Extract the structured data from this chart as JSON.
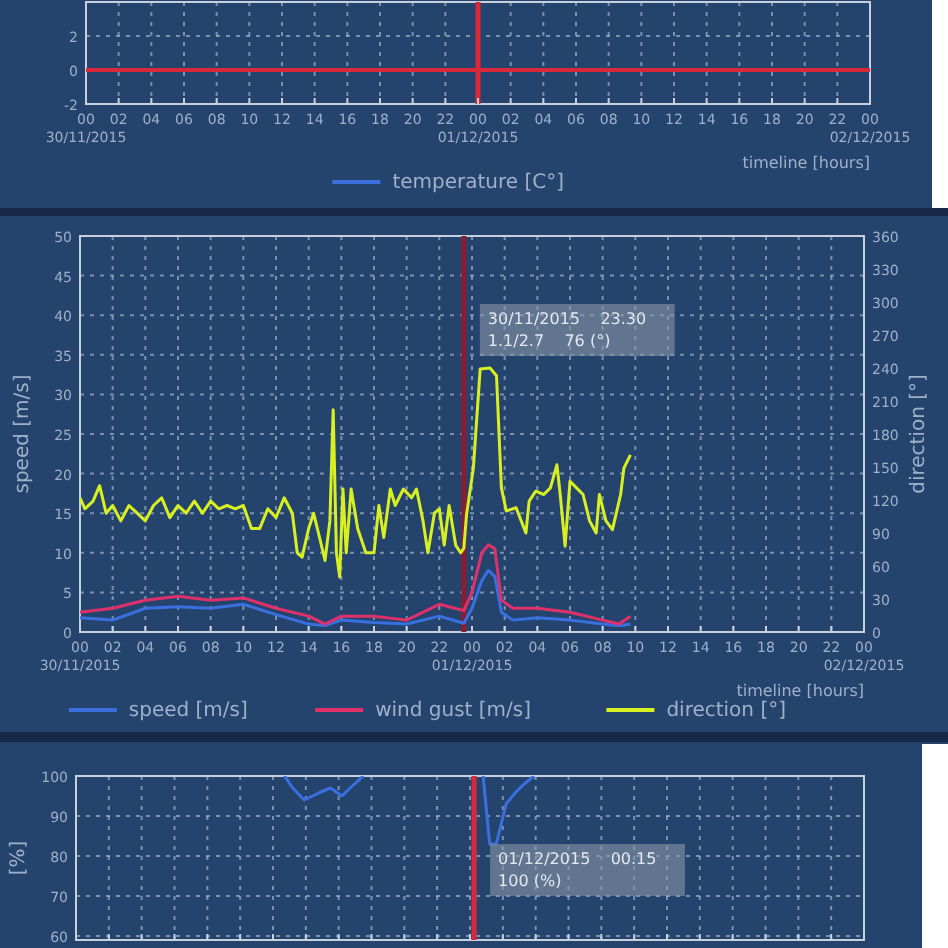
{
  "chart_data": [
    {
      "type": "line",
      "xlabel": "timeline [hours]",
      "categories": [
        "00\n30/11/2015",
        "02",
        "04",
        "06",
        "08",
        "10",
        "12",
        "14",
        "16",
        "18",
        "20",
        "22",
        "00\n01/12/2015",
        "02",
        "04",
        "06",
        "08",
        "10",
        "12",
        "14",
        "16",
        "18",
        "20",
        "22",
        "00\n02/12/2015"
      ],
      "ylim": [
        -2,
        4
      ],
      "yticks": [
        -2,
        0,
        2
      ],
      "grid": true,
      "legend": "bottom",
      "series": [
        {
          "name": "temperature [C°]",
          "color": "#3a6fe0",
          "values": [
            null,
            null,
            null,
            null,
            null,
            null,
            null,
            null,
            null,
            null,
            null,
            null,
            null,
            null,
            null,
            null,
            null,
            null,
            null,
            null,
            null,
            null,
            null,
            null,
            null
          ]
        }
      ],
      "ref_lines": [
        {
          "axis": "y",
          "value": 0,
          "color": "#d8283a"
        },
        {
          "axis": "x",
          "value": "00\n01/12/2015",
          "color": "#d8283a"
        }
      ]
    },
    {
      "type": "line",
      "xlabel": "timeline [hours]",
      "ylabel": "speed  [m/s]",
      "y2label": "direction  [°]",
      "xlim": [
        "2015-11-30T00:00",
        "2015-12-02T00:00"
      ],
      "xticks": [
        {
          "value": "2015-11-30T00:00",
          "label": "00\n30/11/2015"
        },
        {
          "value": "2015-11-30T02:00",
          "label": "02"
        },
        {
          "value": "2015-11-30T04:00",
          "label": "04"
        },
        {
          "value": "2015-11-30T06:00",
          "label": "06"
        },
        {
          "value": "2015-11-30T08:00",
          "label": "08"
        },
        {
          "value": "2015-11-30T10:00",
          "label": "10"
        },
        {
          "value": "2015-11-30T12:00",
          "label": "12"
        },
        {
          "value": "2015-11-30T14:00",
          "label": "14"
        },
        {
          "value": "2015-11-30T16:00",
          "label": "16"
        },
        {
          "value": "2015-11-30T18:00",
          "label": "18"
        },
        {
          "value": "2015-11-30T20:00",
          "label": "20"
        },
        {
          "value": "2015-11-30T22:00",
          "label": "22"
        },
        {
          "value": "2015-12-01T00:00",
          "label": "00\n01/12/2015"
        },
        {
          "value": "2015-12-01T02:00",
          "label": "02"
        },
        {
          "value": "2015-12-01T04:00",
          "label": "04"
        },
        {
          "value": "2015-12-01T06:00",
          "label": "06"
        },
        {
          "value": "2015-12-01T08:00",
          "label": "08"
        },
        {
          "value": "2015-12-01T10:00",
          "label": "10"
        },
        {
          "value": "2015-12-01T12:00",
          "label": "12"
        },
        {
          "value": "2015-12-01T14:00",
          "label": "14"
        },
        {
          "value": "2015-12-01T16:00",
          "label": "16"
        },
        {
          "value": "2015-12-01T18:00",
          "label": "18"
        },
        {
          "value": "2015-12-01T20:00",
          "label": "20"
        },
        {
          "value": "2015-12-01T22:00",
          "label": "22"
        },
        {
          "value": "2015-12-02T00:00",
          "label": "00\n02/12/2015"
        }
      ],
      "ylim": [
        0,
        50
      ],
      "yticks": [
        0,
        5,
        10,
        15,
        20,
        25,
        30,
        35,
        40,
        45,
        50
      ],
      "y2lim": [
        0,
        360
      ],
      "y2ticks": [
        0,
        30,
        60,
        90,
        120,
        150,
        180,
        210,
        240,
        270,
        300,
        330,
        360
      ],
      "grid": true,
      "legend": "bottom",
      "series": [
        {
          "name": "speed  [m/s]",
          "color": "#3a6fe0",
          "x": [
            "2015-11-30T00:00",
            "2015-11-30T02:00",
            "2015-11-30T04:00",
            "2015-11-30T06:00",
            "2015-11-30T08:00",
            "2015-11-30T10:00",
            "2015-11-30T12:00",
            "2015-11-30T14:00",
            "2015-11-30T15:00",
            "2015-11-30T16:00",
            "2015-11-30T18:00",
            "2015-11-30T20:00",
            "2015-11-30T22:00",
            "2015-11-30T23:30",
            "2015-12-01T00:00",
            "2015-12-01T00:36",
            "2015-12-01T01:00",
            "2015-12-01T01:24",
            "2015-12-01T01:48",
            "2015-12-01T02:30",
            "2015-12-01T04:00",
            "2015-12-01T06:00",
            "2015-12-01T08:00",
            "2015-12-01T09:00",
            "2015-12-01T09:42"
          ],
          "values": [
            1.8,
            1.5,
            3,
            3.2,
            3,
            3.5,
            2.2,
            1,
            0.8,
            1.5,
            1.2,
            1,
            2,
            1.1,
            3,
            6.5,
            7.8,
            7,
            2.5,
            1.5,
            1.8,
            1.5,
            1,
            0.8,
            1
          ]
        },
        {
          "name": "wind gust  [m/s]",
          "color": "#e0306a",
          "x": [
            "2015-11-30T00:00",
            "2015-11-30T02:00",
            "2015-11-30T04:00",
            "2015-11-30T06:00",
            "2015-11-30T08:00",
            "2015-11-30T10:00",
            "2015-11-30T12:00",
            "2015-11-30T14:00",
            "2015-11-30T15:00",
            "2015-11-30T16:00",
            "2015-11-30T18:00",
            "2015-11-30T20:00",
            "2015-11-30T22:00",
            "2015-11-30T23:30",
            "2015-12-01T00:00",
            "2015-12-01T00:36",
            "2015-12-01T01:00",
            "2015-12-01T01:24",
            "2015-12-01T01:48",
            "2015-12-01T02:30",
            "2015-12-01T04:00",
            "2015-12-01T06:00",
            "2015-12-01T08:00",
            "2015-12-01T09:00",
            "2015-12-01T09:42"
          ],
          "values": [
            2.5,
            3,
            4,
            4.5,
            4,
            4.3,
            3,
            2,
            1,
            2,
            2,
            1.5,
            3.5,
            2.7,
            5,
            10,
            11,
            10.5,
            4,
            3,
            3,
            2.5,
            1.5,
            1,
            2
          ]
        },
        {
          "name": "direction  [°]",
          "color": "#d8f020",
          "axis": "y2",
          "x": [
            "2015-11-30T00:00",
            "2015-11-30T00:18",
            "2015-11-30T00:48",
            "2015-11-30T01:12",
            "2015-11-30T01:36",
            "2015-11-30T02:00",
            "2015-11-30T02:30",
            "2015-11-30T03:00",
            "2015-11-30T03:30",
            "2015-11-30T04:00",
            "2015-11-30T04:30",
            "2015-11-30T05:00",
            "2015-11-30T05:30",
            "2015-11-30T06:00",
            "2015-11-30T06:30",
            "2015-11-30T07:00",
            "2015-11-30T07:30",
            "2015-11-30T08:00",
            "2015-11-30T08:30",
            "2015-11-30T09:00",
            "2015-11-30T09:30",
            "2015-11-30T10:00",
            "2015-11-30T10:30",
            "2015-11-30T11:00",
            "2015-11-30T11:30",
            "2015-11-30T12:00",
            "2015-11-30T12:30",
            "2015-11-30T13:00",
            "2015-11-30T13:18",
            "2015-11-30T13:36",
            "2015-11-30T14:00",
            "2015-11-30T14:18",
            "2015-11-30T14:36",
            "2015-11-30T15:00",
            "2015-11-30T15:18",
            "2015-11-30T15:30",
            "2015-11-30T15:42",
            "2015-11-30T15:54",
            "2015-11-30T16:06",
            "2015-11-30T16:18",
            "2015-11-30T16:36",
            "2015-11-30T17:00",
            "2015-11-30T17:30",
            "2015-11-30T18:00",
            "2015-11-30T18:18",
            "2015-11-30T18:36",
            "2015-11-30T19:00",
            "2015-11-30T19:18",
            "2015-11-30T19:48",
            "2015-11-30T20:18",
            "2015-11-30T20:36",
            "2015-11-30T21:00",
            "2015-11-30T21:18",
            "2015-11-30T21:42",
            "2015-11-30T22:00",
            "2015-11-30T22:18",
            "2015-11-30T22:36",
            "2015-11-30T23:00",
            "2015-11-30T23:18",
            "2015-11-30T23:30",
            "2015-11-30T23:40",
            "2015-12-01T00:05",
            "2015-12-01T00:30",
            "2015-12-01T01:06",
            "2015-12-01T01:30",
            "2015-12-01T01:48",
            "2015-12-01T02:06",
            "2015-12-01T02:42",
            "2015-12-01T03:18",
            "2015-12-01T03:30",
            "2015-12-01T03:54",
            "2015-12-01T04:24",
            "2015-12-01T04:48",
            "2015-12-01T05:12",
            "2015-12-01T05:24",
            "2015-12-01T05:42",
            "2015-12-01T06:00",
            "2015-12-01T06:24",
            "2015-12-01T06:48",
            "2015-12-01T07:12",
            "2015-12-01T07:36",
            "2015-12-01T07:48",
            "2015-12-01T08:12",
            "2015-12-01T08:36",
            "2015-12-01T09:06",
            "2015-12-01T09:18",
            "2015-12-01T09:42"
          ],
          "values": [
            122,
            112,
            119,
            133,
            108,
            115,
            101,
            115,
            108,
            101,
            115,
            122,
            104,
            115,
            108,
            119,
            108,
            119,
            112,
            115,
            112,
            115,
            94,
            94,
            112,
            104,
            122,
            108,
            72,
            68,
            94,
            108,
            90,
            65,
            101,
            202,
            72,
            50,
            130,
            72,
            130,
            94,
            72,
            72,
            115,
            86,
            130,
            115,
            130,
            122,
            130,
            101,
            72,
            108,
            112,
            79,
            115,
            79,
            72,
            76,
            107,
            149,
            239,
            240,
            233,
            131,
            110,
            113,
            90,
            119,
            128,
            125,
            131,
            152,
            125,
            78,
            137,
            131,
            125,
            101,
            90,
            125,
            101,
            93,
            125,
            149,
            161
          ]
        }
      ],
      "ref_lines": [
        {
          "axis": "x",
          "value": "2015-11-30T23:30",
          "color": "#8a1c34"
        }
      ],
      "annotations": [
        "30/11/2015    23.30",
        "1.1/2.7    76 (°)"
      ]
    },
    {
      "type": "line",
      "ylabel": "[%]",
      "xlim": [
        "2015-11-30T00:00",
        "2015-12-02T00:00"
      ],
      "ylim": [
        59,
        100
      ],
      "yticks": [
        60,
        70,
        80,
        90,
        100
      ],
      "grid": true,
      "tick_labels": "y",
      "xticks": [
        {
          "value": "2015-11-30T00:00",
          "label": null
        },
        {
          "value": "2015-11-30T02:00",
          "label": null
        },
        {
          "value": "2015-11-30T04:00",
          "label": null
        },
        {
          "value": "2015-11-30T06:00",
          "label": null
        },
        {
          "value": "2015-11-30T08:00",
          "label": null
        },
        {
          "value": "2015-11-30T10:00",
          "label": null
        },
        {
          "value": "2015-11-30T12:00",
          "label": null
        },
        {
          "value": "2015-11-30T14:00",
          "label": null
        },
        {
          "value": "2015-11-30T16:00",
          "label": null
        },
        {
          "value": "2015-11-30T18:00",
          "label": null
        },
        {
          "value": "2015-11-30T20:00",
          "label": null
        },
        {
          "value": "2015-11-30T22:00",
          "label": null
        },
        {
          "value": "2015-12-01T00:00",
          "label": null
        },
        {
          "value": "2015-12-01T02:00",
          "label": null
        },
        {
          "value": "2015-12-01T04:00",
          "label": null
        },
        {
          "value": "2015-12-01T06:00",
          "label": null
        },
        {
          "value": "2015-12-01T08:00",
          "label": null
        },
        {
          "value": "2015-12-01T10:00",
          "label": null
        },
        {
          "value": "2015-12-01T12:00",
          "label": null
        },
        {
          "value": "2015-12-01T14:00",
          "label": null
        },
        {
          "value": "2015-12-01T16:00",
          "label": null
        },
        {
          "value": "2015-12-01T18:00",
          "label": null
        },
        {
          "value": "2015-12-01T20:00",
          "label": null
        },
        {
          "value": "2015-12-01T22:00",
          "label": null
        },
        {
          "value": "2015-12-02T00:00",
          "label": null
        }
      ],
      "series": [
        {
          "color": "#3a6fe0",
          "x": [
            "2015-11-30T12:42",
            "2015-11-30T13:12",
            "2015-11-30T13:54",
            "2015-11-30T14:24",
            "2015-11-30T14:54",
            "2015-11-30T15:30",
            "2015-11-30T16:12",
            "2015-11-30T16:42",
            "2015-11-30T17:30",
            "2015-11-30T21:00",
            "2015-12-01T00:48",
            "2015-12-01T01:12",
            "2015-12-01T01:36",
            "2015-12-01T02:12",
            "2015-12-01T02:48",
            "2015-12-01T03:18",
            "2015-12-01T03:54"
          ],
          "values": [
            100,
            97,
            94,
            95,
            96,
            97,
            95,
            97,
            100,
            null,
            100,
            83,
            83,
            93,
            96,
            98,
            100
          ]
        }
      ],
      "ref_lines": [
        {
          "axis": "x",
          "value": "2015-12-01T00:15",
          "color": "#d8283a"
        }
      ],
      "annotations": [
        "01/12/2015    00.15",
        "100 (%)"
      ]
    }
  ]
}
